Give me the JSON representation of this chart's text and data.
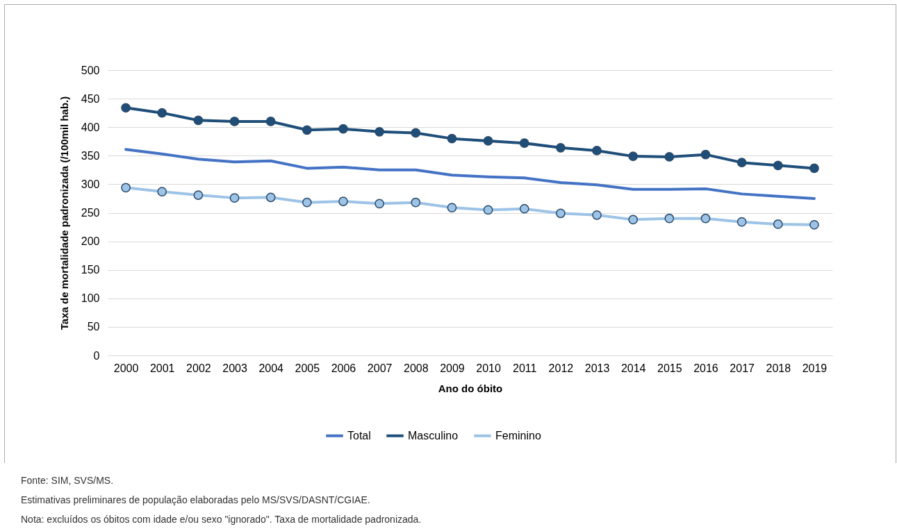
{
  "chart_data": {
    "type": "line",
    "xlabel": "Ano do óbito",
    "ylabel": "Taxa de mortalidade padronizada (/100mil hab.)",
    "categories": [
      "2000",
      "2001",
      "2002",
      "2003",
      "2004",
      "2005",
      "2006",
      "2007",
      "2008",
      "2009",
      "2010",
      "2011",
      "2012",
      "2013",
      "2014",
      "2015",
      "2016",
      "2017",
      "2018",
      "2019"
    ],
    "series": [
      {
        "name": "Total",
        "color": "#4472c4",
        "marker": "none",
        "values": [
          361,
          353,
          344,
          339,
          341,
          328,
          330,
          325,
          325,
          316,
          313,
          311,
          303,
          299,
          291,
          291,
          292,
          283,
          279,
          275
        ]
      },
      {
        "name": "Masculino",
        "color": "#1f4e79",
        "marker": "circle",
        "values": [
          434,
          425,
          412,
          410,
          410,
          395,
          397,
          392,
          390,
          380,
          376,
          372,
          364,
          359,
          349,
          348,
          352,
          338,
          333,
          328
        ]
      },
      {
        "name": "Feminino",
        "color": "#9dc3e6",
        "marker": "circle",
        "values": [
          294,
          287,
          281,
          276,
          277,
          268,
          270,
          266,
          268,
          259,
          255,
          257,
          249,
          246,
          238,
          240,
          240,
          234,
          230,
          229
        ]
      }
    ],
    "ylim": [
      0,
      500
    ],
    "yticks": [
      0,
      50,
      100,
      150,
      200,
      250,
      300,
      350,
      400,
      450,
      500
    ],
    "grid": "y",
    "legend": "bottom",
    "annotations": [
      "Fonte: SIM, SVS/MS.",
      "Estimativas preliminares de população elaboradas pelo MS/SVS/DASNT/CGIAE.",
      "Nota: excluídos os óbitos com idade e/ou sexo \"ignorado\". Taxa de mortalidade padronizada."
    ]
  }
}
